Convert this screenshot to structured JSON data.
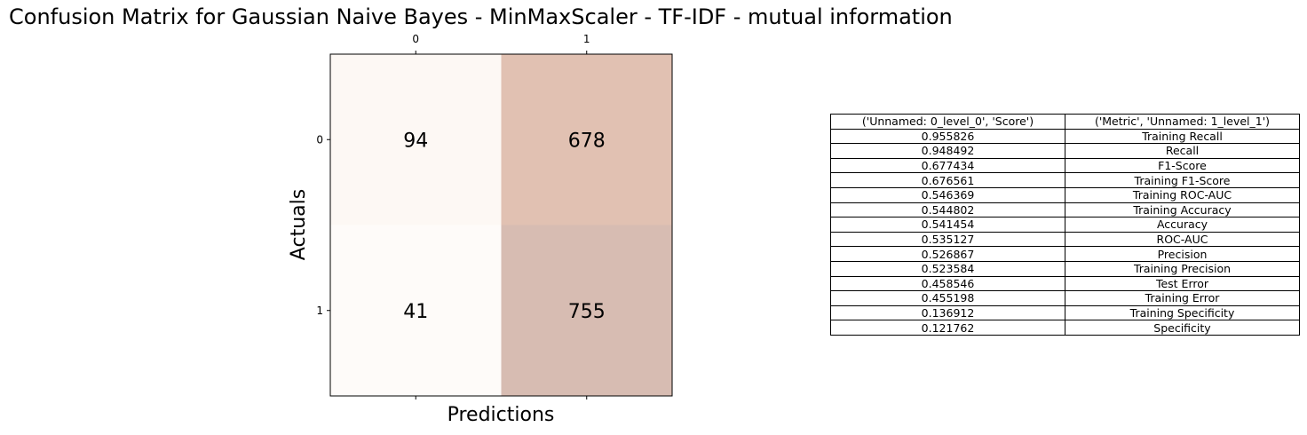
{
  "title": "Confusion Matrix for Gaussian Naive Bayes - MinMaxScaler - TF-IDF - mutual information",
  "chart_data": {
    "type": "heatmap",
    "xlabel": "Predictions",
    "ylabel": "Actuals",
    "x_ticks": [
      "0",
      "1"
    ],
    "y_ticks": [
      "0",
      "1"
    ],
    "cells": [
      [
        94,
        678
      ],
      [
        41,
        755
      ]
    ],
    "cell_labels": [
      [
        "94",
        "678"
      ],
      [
        "41",
        "755"
      ]
    ],
    "colors": [
      [
        "#fdf8f4",
        "#e1c1b2"
      ],
      [
        "#fefbf9",
        "#d7bcb2"
      ]
    ]
  },
  "metrics_table": {
    "headers": [
      "('Unnamed: 0_level_0', 'Score')",
      "('Metric', 'Unnamed: 1_level_1')"
    ],
    "rows": [
      [
        "0.955826",
        "Training Recall"
      ],
      [
        "0.948492",
        "Recall"
      ],
      [
        "0.677434",
        "F1-Score"
      ],
      [
        "0.676561",
        "Training F1-Score"
      ],
      [
        "0.546369",
        "Training ROC-AUC"
      ],
      [
        "0.544802",
        "Training Accuracy"
      ],
      [
        "0.541454",
        "Accuracy"
      ],
      [
        "0.535127",
        "ROC-AUC"
      ],
      [
        "0.526867",
        "Precision"
      ],
      [
        "0.523584",
        "Training Precision"
      ],
      [
        "0.458546",
        "Test Error"
      ],
      [
        "0.455198",
        "Training Error"
      ],
      [
        "0.136912",
        "Training Specificity"
      ],
      [
        "0.121762",
        "Specificity"
      ]
    ]
  }
}
